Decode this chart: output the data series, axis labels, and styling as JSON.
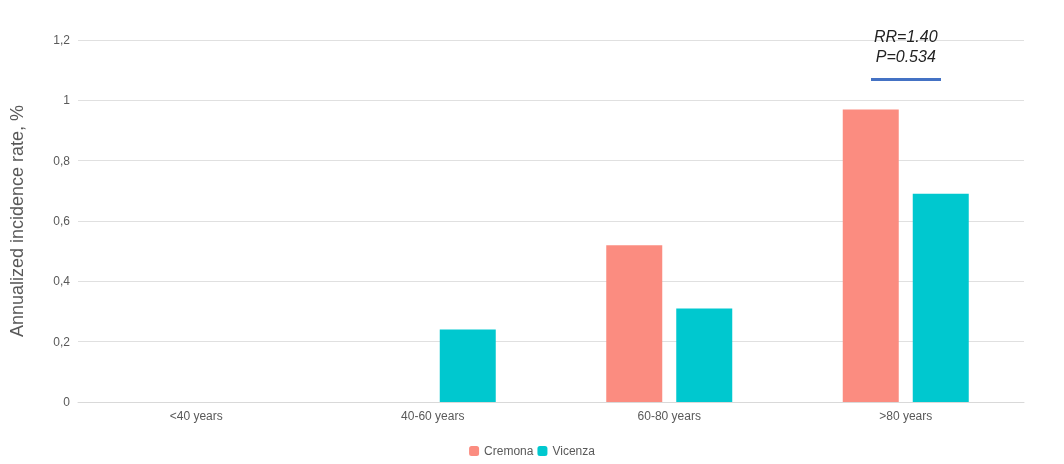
{
  "chart_data": {
    "type": "bar",
    "ylabel": "Annualized incidence rate, %",
    "categories": [
      "<40 years",
      "40-60 years",
      "60-80 years",
      ">80 years"
    ],
    "series": [
      {
        "name": "Cremona",
        "color": "#fb8c80",
        "values": [
          0,
          0,
          0.52,
          0.97
        ]
      },
      {
        "name": "Vicenza",
        "color": "#00c8cf",
        "values": [
          0,
          0.24,
          0.31,
          0.69
        ]
      }
    ],
    "ylim": [
      0,
      1.2
    ],
    "yticks": [
      0,
      {
        "value": 0.2,
        "label": "0,2"
      },
      {
        "value": 0.4,
        "label": "0,4"
      },
      {
        "value": 0.6,
        "label": "0,6"
      },
      {
        "value": 0.8,
        "label": "0,8"
      },
      1,
      {
        "value": 1.2,
        "label": "1,2"
      }
    ],
    "grid": "y",
    "legend": "bottom",
    "annotations": [
      "RR=1.40\nP=0.534"
    ]
  }
}
